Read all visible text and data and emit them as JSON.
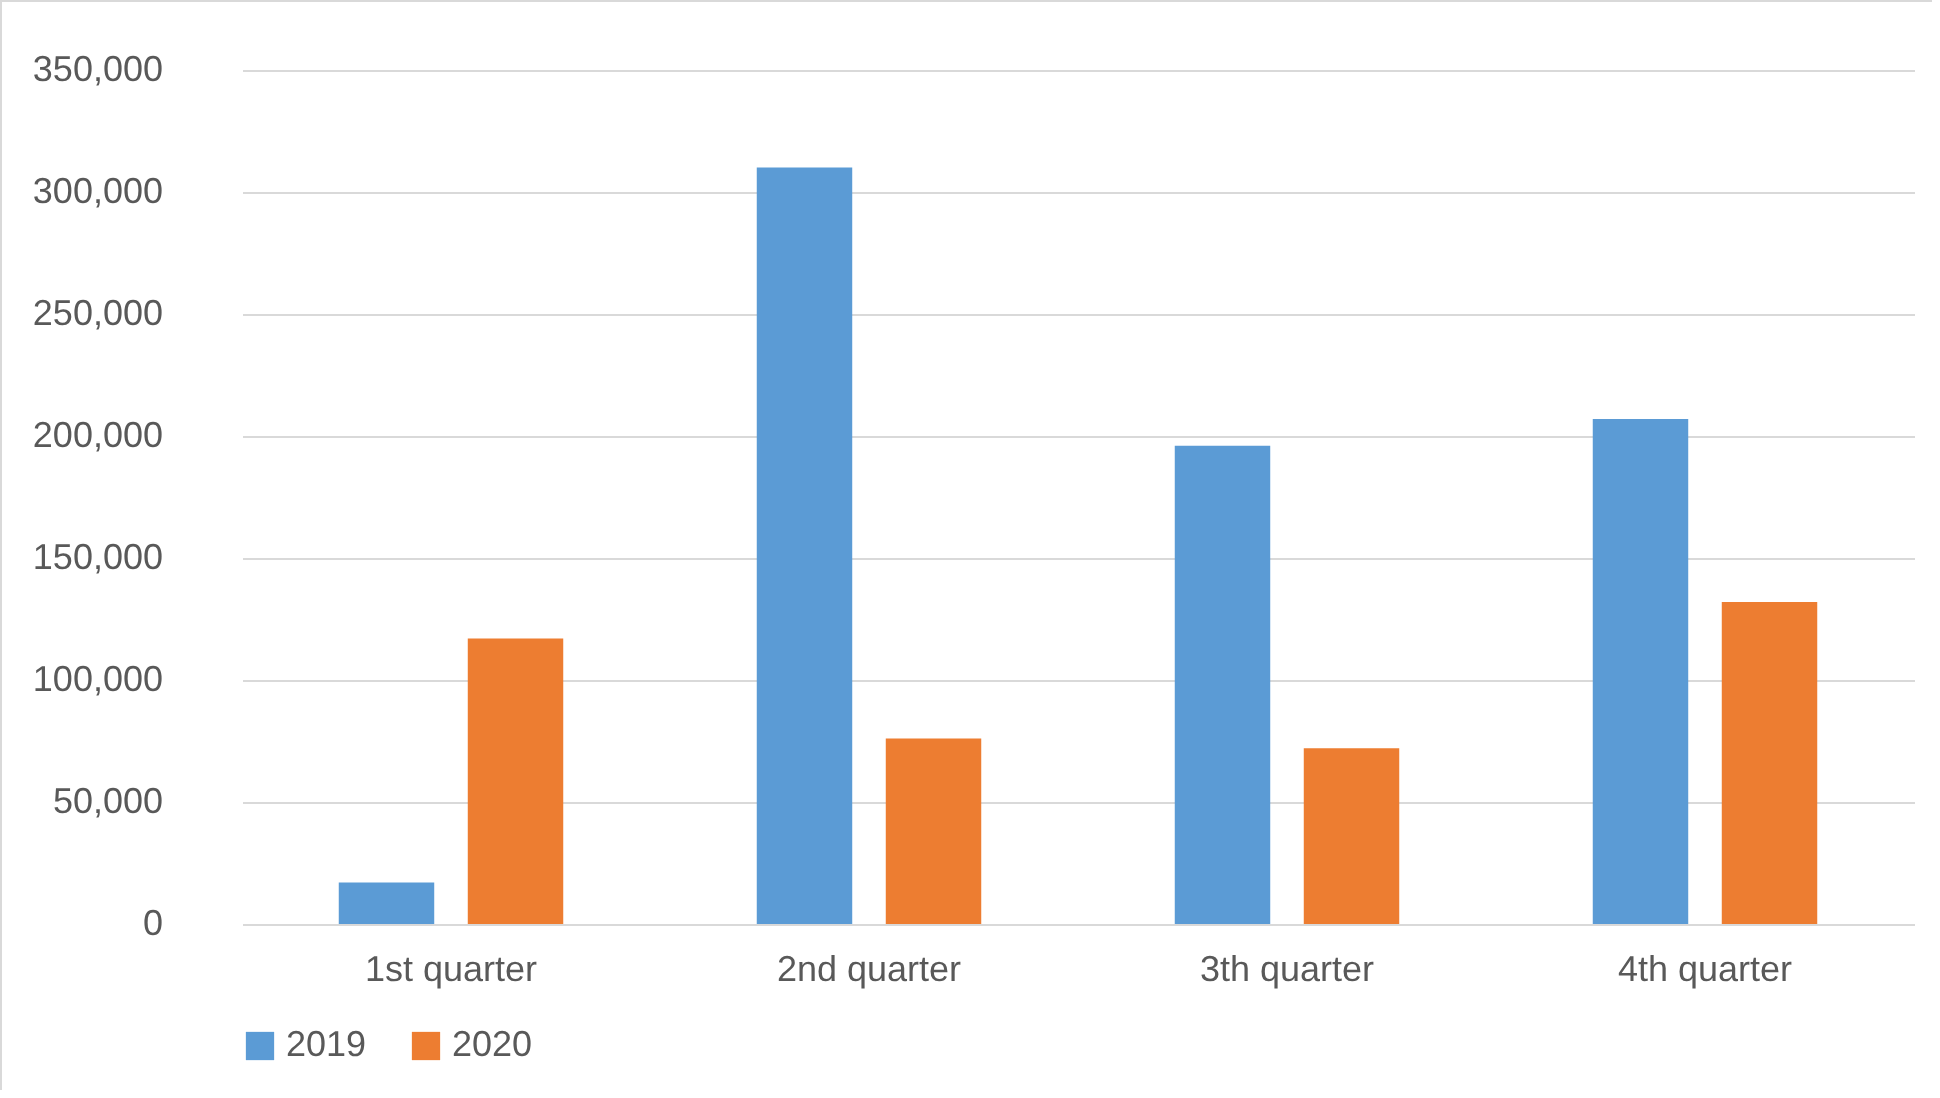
{
  "chart_data": {
    "type": "bar",
    "categories": [
      "1st quarter",
      "2nd quarter",
      "3th quarter",
      "4th quarter"
    ],
    "series": [
      {
        "name": "2019",
        "color": "#5b9bd5",
        "values": [
          17000,
          310000,
          196000,
          207000
        ]
      },
      {
        "name": "2020",
        "color": "#ed7d31",
        "values": [
          117000,
          76000,
          72000,
          132000
        ]
      }
    ],
    "ylim": [
      0,
      350000
    ],
    "yticks": [
      {
        "value": 0,
        "label": "0"
      },
      {
        "value": 50000,
        "label": "50,000"
      },
      {
        "value": 100000,
        "label": "100,000"
      },
      {
        "value": 150000,
        "label": "150,000"
      },
      {
        "value": 200000,
        "label": "200,000"
      },
      {
        "value": 250000,
        "label": "250,000"
      },
      {
        "value": 300000,
        "label": "300,000"
      },
      {
        "value": 350000,
        "label": "350,000"
      }
    ],
    "grid": "y",
    "legend": "bottom"
  }
}
